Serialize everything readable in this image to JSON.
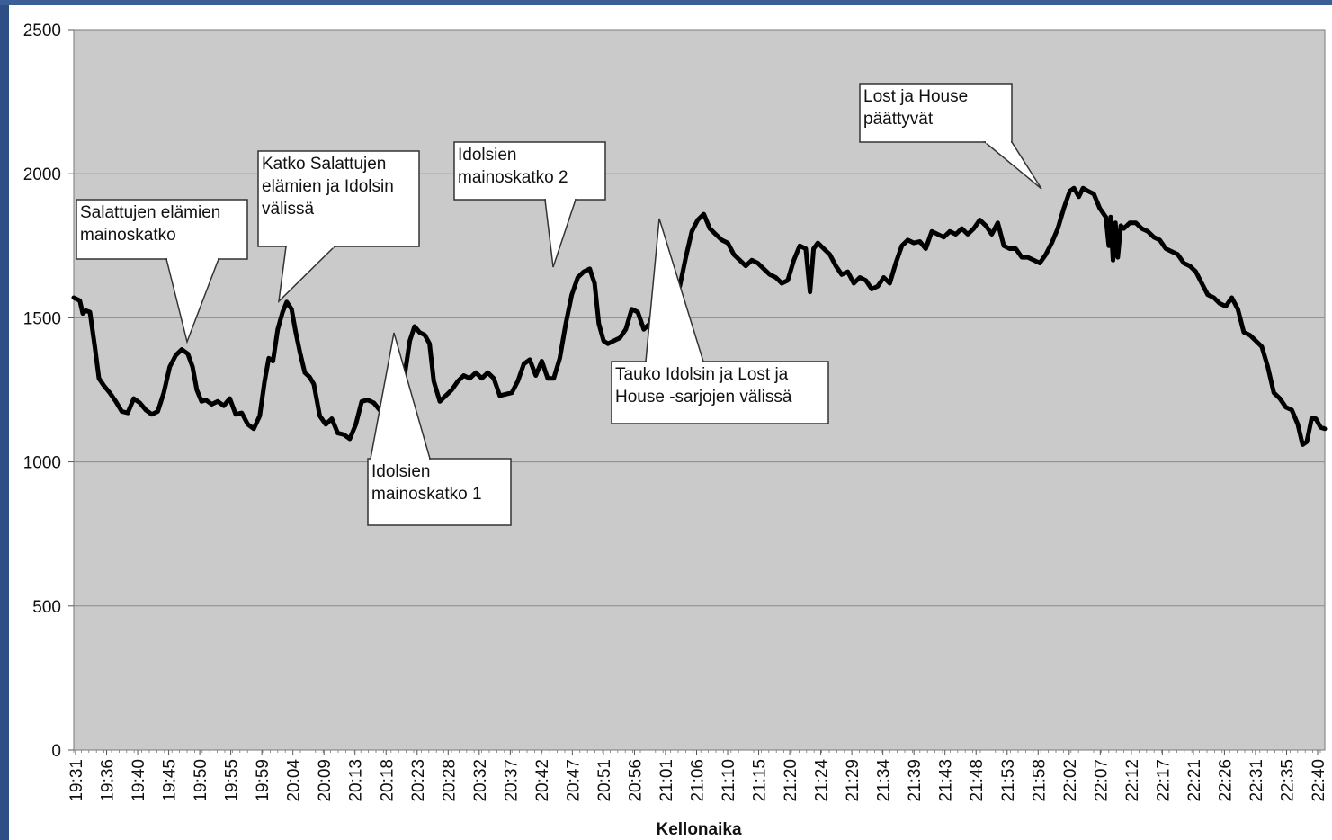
{
  "chart_data": {
    "type": "line",
    "title": "",
    "xlabel": "Kellonaika",
    "ylabel": "",
    "ylim": [
      0,
      2500
    ],
    "yticks": [
      "0",
      "500",
      "1000",
      "1500",
      "2000",
      "2500"
    ],
    "grid": true,
    "colors": {
      "plot_bg": "#cacaca",
      "line": "#000000",
      "grid": "#8a8a8a"
    },
    "x_tick_labels": [
      "19:31",
      "19:36",
      "19:40",
      "19:45",
      "19:50",
      "19:55",
      "19:59",
      "20:04",
      "20:09",
      "20:13",
      "20:18",
      "20:23",
      "20:28",
      "20:32",
      "20:37",
      "20:42",
      "20:47",
      "20:51",
      "20:56",
      "21:01",
      "21:06",
      "21:10",
      "21:15",
      "21:20",
      "21:24",
      "21:29",
      "21:34",
      "21:39",
      "21:43",
      "21:48",
      "21:53",
      "21:58",
      "22:02",
      "22:07",
      "22:12",
      "22:17",
      "22:21",
      "22:26",
      "22:31",
      "22:35",
      "22:40"
    ],
    "x_range_minutes": [
      0,
      193
    ],
    "series": [
      {
        "points": [
          [
            0,
            1570
          ],
          [
            1,
            1560
          ],
          [
            1.5,
            1515
          ],
          [
            2,
            1525
          ],
          [
            2.7,
            1520
          ],
          [
            3.5,
            1400
          ],
          [
            4.2,
            1290
          ],
          [
            5,
            1265
          ],
          [
            6,
            1240
          ],
          [
            7,
            1210
          ],
          [
            8,
            1175
          ],
          [
            9,
            1170
          ],
          [
            10,
            1220
          ],
          [
            11,
            1205
          ],
          [
            12,
            1180
          ],
          [
            13,
            1165
          ],
          [
            14,
            1175
          ],
          [
            15,
            1240
          ],
          [
            16,
            1330
          ],
          [
            17,
            1370
          ],
          [
            18,
            1390
          ],
          [
            19,
            1375
          ],
          [
            19.8,
            1330
          ],
          [
            20.5,
            1250
          ],
          [
            21.3,
            1210
          ],
          [
            22,
            1215
          ],
          [
            23,
            1200
          ],
          [
            24,
            1210
          ],
          [
            25,
            1195
          ],
          [
            26,
            1220
          ],
          [
            27,
            1165
          ],
          [
            28,
            1170
          ],
          [
            29,
            1130
          ],
          [
            30,
            1115
          ],
          [
            31,
            1160
          ],
          [
            31.8,
            1280
          ],
          [
            32.5,
            1360
          ],
          [
            33.2,
            1350
          ],
          [
            34,
            1460
          ],
          [
            34.8,
            1520
          ],
          [
            35.5,
            1555
          ],
          [
            36.3,
            1530
          ],
          [
            37,
            1450
          ],
          [
            37.7,
            1380
          ],
          [
            38.5,
            1310
          ],
          [
            39.3,
            1295
          ],
          [
            40,
            1270
          ],
          [
            41,
            1160
          ],
          [
            42,
            1130
          ],
          [
            43,
            1150
          ],
          [
            44,
            1100
          ],
          [
            45,
            1095
          ],
          [
            46,
            1080
          ],
          [
            47,
            1130
          ],
          [
            48,
            1210
          ],
          [
            49,
            1215
          ],
          [
            50,
            1205
          ],
          [
            51,
            1180
          ],
          [
            52,
            1200
          ],
          [
            53,
            1185
          ],
          [
            54,
            1165
          ],
          [
            55,
            1280
          ],
          [
            56,
            1420
          ],
          [
            56.8,
            1470
          ],
          [
            57.6,
            1450
          ],
          [
            58.5,
            1440
          ],
          [
            59.3,
            1410
          ],
          [
            60,
            1280
          ],
          [
            61,
            1210
          ],
          [
            62,
            1230
          ],
          [
            63,
            1250
          ],
          [
            64,
            1280
          ],
          [
            65,
            1300
          ],
          [
            66,
            1290
          ],
          [
            67,
            1310
          ],
          [
            68,
            1290
          ],
          [
            69,
            1310
          ],
          [
            70,
            1290
          ],
          [
            71,
            1230
          ],
          [
            72,
            1235
          ],
          [
            73,
            1240
          ],
          [
            74,
            1280
          ],
          [
            75,
            1340
          ],
          [
            76,
            1355
          ],
          [
            77,
            1300
          ],
          [
            78,
            1350
          ],
          [
            79,
            1290
          ],
          [
            80,
            1290
          ],
          [
            81,
            1360
          ],
          [
            82,
            1480
          ],
          [
            83,
            1580
          ],
          [
            84,
            1640
          ],
          [
            85,
            1660
          ],
          [
            86,
            1670
          ],
          [
            86.8,
            1620
          ],
          [
            87.5,
            1480
          ],
          [
            88.3,
            1420
          ],
          [
            89,
            1410
          ],
          [
            90,
            1420
          ],
          [
            91,
            1430
          ],
          [
            92,
            1460
          ],
          [
            93,
            1530
          ],
          [
            94,
            1520
          ],
          [
            95,
            1460
          ],
          [
            96,
            1480
          ],
          [
            97,
            1570
          ],
          [
            98,
            1560
          ],
          [
            99,
            1520
          ],
          [
            100,
            1580
          ],
          [
            101,
            1610
          ],
          [
            102,
            1710
          ],
          [
            103,
            1800
          ],
          [
            104,
            1840
          ],
          [
            105,
            1860
          ],
          [
            106,
            1810
          ],
          [
            107,
            1790
          ],
          [
            108,
            1770
          ],
          [
            109,
            1760
          ],
          [
            110,
            1720
          ],
          [
            111,
            1700
          ],
          [
            112,
            1680
          ],
          [
            113,
            1700
          ],
          [
            114,
            1690
          ],
          [
            115,
            1670
          ],
          [
            116,
            1650
          ],
          [
            117,
            1640
          ],
          [
            118,
            1620
          ],
          [
            119,
            1630
          ],
          [
            120,
            1700
          ],
          [
            121,
            1750
          ],
          [
            122,
            1740
          ],
          [
            122.7,
            1590
          ],
          [
            123.3,
            1740
          ],
          [
            124,
            1760
          ],
          [
            125,
            1740
          ],
          [
            126,
            1720
          ],
          [
            127,
            1680
          ],
          [
            128,
            1650
          ],
          [
            129,
            1660
          ],
          [
            130,
            1620
          ],
          [
            131,
            1640
          ],
          [
            132,
            1630
          ],
          [
            133,
            1600
          ],
          [
            134,
            1610
          ],
          [
            135,
            1640
          ],
          [
            136,
            1620
          ],
          [
            137,
            1690
          ],
          [
            138,
            1750
          ],
          [
            139,
            1770
          ],
          [
            140,
            1760
          ],
          [
            141,
            1765
          ],
          [
            142,
            1740
          ],
          [
            143,
            1800
          ],
          [
            144,
            1790
          ],
          [
            145,
            1780
          ],
          [
            146,
            1800
          ],
          [
            147,
            1790
          ],
          [
            148,
            1810
          ],
          [
            149,
            1790
          ],
          [
            150,
            1810
          ],
          [
            151,
            1840
          ],
          [
            152,
            1820
          ],
          [
            153,
            1790
          ],
          [
            154,
            1830
          ],
          [
            155,
            1750
          ],
          [
            156,
            1740
          ],
          [
            157,
            1740
          ],
          [
            158,
            1710
          ],
          [
            159,
            1710
          ],
          [
            160,
            1700
          ],
          [
            161,
            1690
          ],
          [
            162,
            1720
          ],
          [
            163,
            1760
          ],
          [
            164,
            1810
          ],
          [
            165,
            1880
          ],
          [
            166,
            1940
          ],
          [
            166.7,
            1950
          ],
          [
            167.5,
            1920
          ],
          [
            168.2,
            1950
          ],
          [
            169,
            1940
          ],
          [
            170,
            1930
          ],
          [
            171,
            1880
          ],
          [
            172,
            1850
          ],
          [
            172.5,
            1750
          ],
          [
            172.8,
            1850
          ],
          [
            173.2,
            1700
          ],
          [
            173.6,
            1830
          ],
          [
            174,
            1710
          ],
          [
            174.5,
            1820
          ],
          [
            175,
            1810
          ],
          [
            176,
            1830
          ],
          [
            177,
            1830
          ],
          [
            178,
            1810
          ],
          [
            179,
            1800
          ],
          [
            180,
            1780
          ],
          [
            181,
            1770
          ],
          [
            182,
            1740
          ],
          [
            183,
            1730
          ],
          [
            184,
            1720
          ],
          [
            185,
            1690
          ],
          [
            186,
            1680
          ],
          [
            187,
            1660
          ],
          [
            188,
            1620
          ],
          [
            189,
            1580
          ],
          [
            190,
            1570
          ],
          [
            191,
            1550
          ],
          [
            192,
            1540
          ],
          [
            193,
            1570
          ],
          [
            194,
            1530
          ],
          [
            195,
            1450
          ],
          [
            196,
            1440
          ],
          [
            197,
            1420
          ],
          [
            198,
            1400
          ],
          [
            199,
            1330
          ],
          [
            200,
            1240
          ],
          [
            201,
            1220
          ],
          [
            202,
            1190
          ],
          [
            203,
            1180
          ],
          [
            204,
            1130
          ],
          [
            204.8,
            1060
          ],
          [
            205.5,
            1070
          ],
          [
            206.3,
            1150
          ],
          [
            207,
            1150
          ],
          [
            207.8,
            1120
          ],
          [
            208.5,
            1115
          ]
        ]
      }
    ],
    "annotations": [
      {
        "lines": [
          "Salattujen elämien",
          "mainoskatko"
        ]
      },
      {
        "lines": [
          "Katko Salattujen",
          "elämien ja Idolsin",
          "välissä"
        ]
      },
      {
        "lines": [
          "Idolsien",
          "mainoskatko 1"
        ]
      },
      {
        "lines": [
          "Idolsien",
          "mainoskatko 2"
        ]
      },
      {
        "lines": [
          "Tauko Idolsin ja Lost ja",
          "House -sarjojen välissä"
        ]
      },
      {
        "lines": [
          "Lost ja House",
          "päättyvät"
        ]
      }
    ]
  }
}
